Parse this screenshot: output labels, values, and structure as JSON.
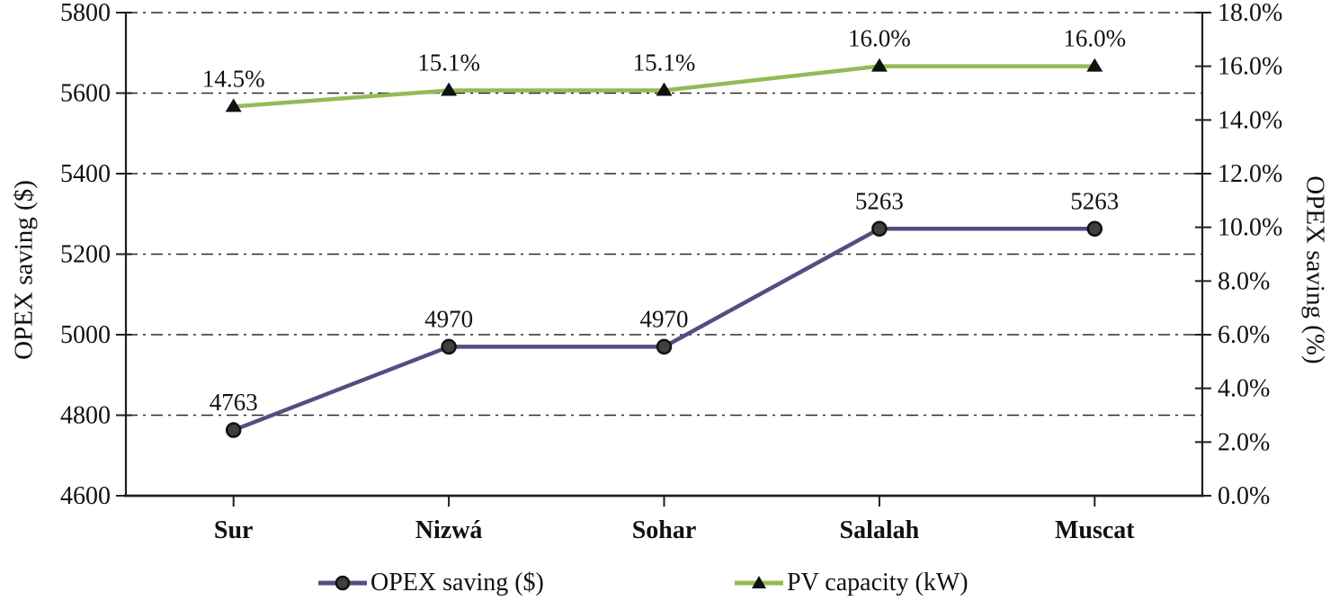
{
  "chart_data": {
    "type": "line",
    "title": "",
    "categories": [
      "Sur",
      "Nizwá",
      "Sohar",
      "Salalah",
      "Muscat"
    ],
    "series": [
      {
        "name": "OPEX saving ($)",
        "axis": "left",
        "marker": "circle",
        "color": "#5b4a82",
        "marker_fill": "#3f3f3f",
        "marker_stroke": "#111111",
        "values": [
          4763,
          4970,
          4970,
          5263,
          5263
        ],
        "labels": [
          "4763",
          "4970",
          "4970",
          "5263",
          "5263"
        ]
      },
      {
        "name": "PV capacity (kW)",
        "axis": "right",
        "marker": "triangle",
        "color": "#94ba55",
        "marker_fill": "#111111",
        "marker_stroke": "#111111",
        "values": [
          14.5,
          15.1,
          15.1,
          16.0,
          16.0
        ],
        "labels": [
          "14.5%",
          "15.1%",
          "15.1%",
          "16.0%",
          "16.0%"
        ]
      }
    ],
    "left_axis": {
      "label": "OPEX saving ($)",
      "min": 4600,
      "max": 5800,
      "step": 200,
      "ticks": [
        "5800",
        "5600",
        "5400",
        "5200",
        "5000",
        "4800",
        "4600"
      ]
    },
    "right_axis": {
      "label": "OPEX saving (%)",
      "min": 0,
      "max": 18,
      "step": 2,
      "ticks": [
        "18.0%",
        "16.0%",
        "14.0%",
        "12.0%",
        "10.0%",
        "8.0%",
        "6.0%",
        "4.0%",
        "2.0%",
        "0.0%"
      ]
    },
    "grid": {
      "style": "dash-dot",
      "horizontal": true,
      "color": "#2b2b2b"
    },
    "axis_color": "#1f1f1f",
    "text_color": "#111111",
    "legend_position": "bottom"
  }
}
